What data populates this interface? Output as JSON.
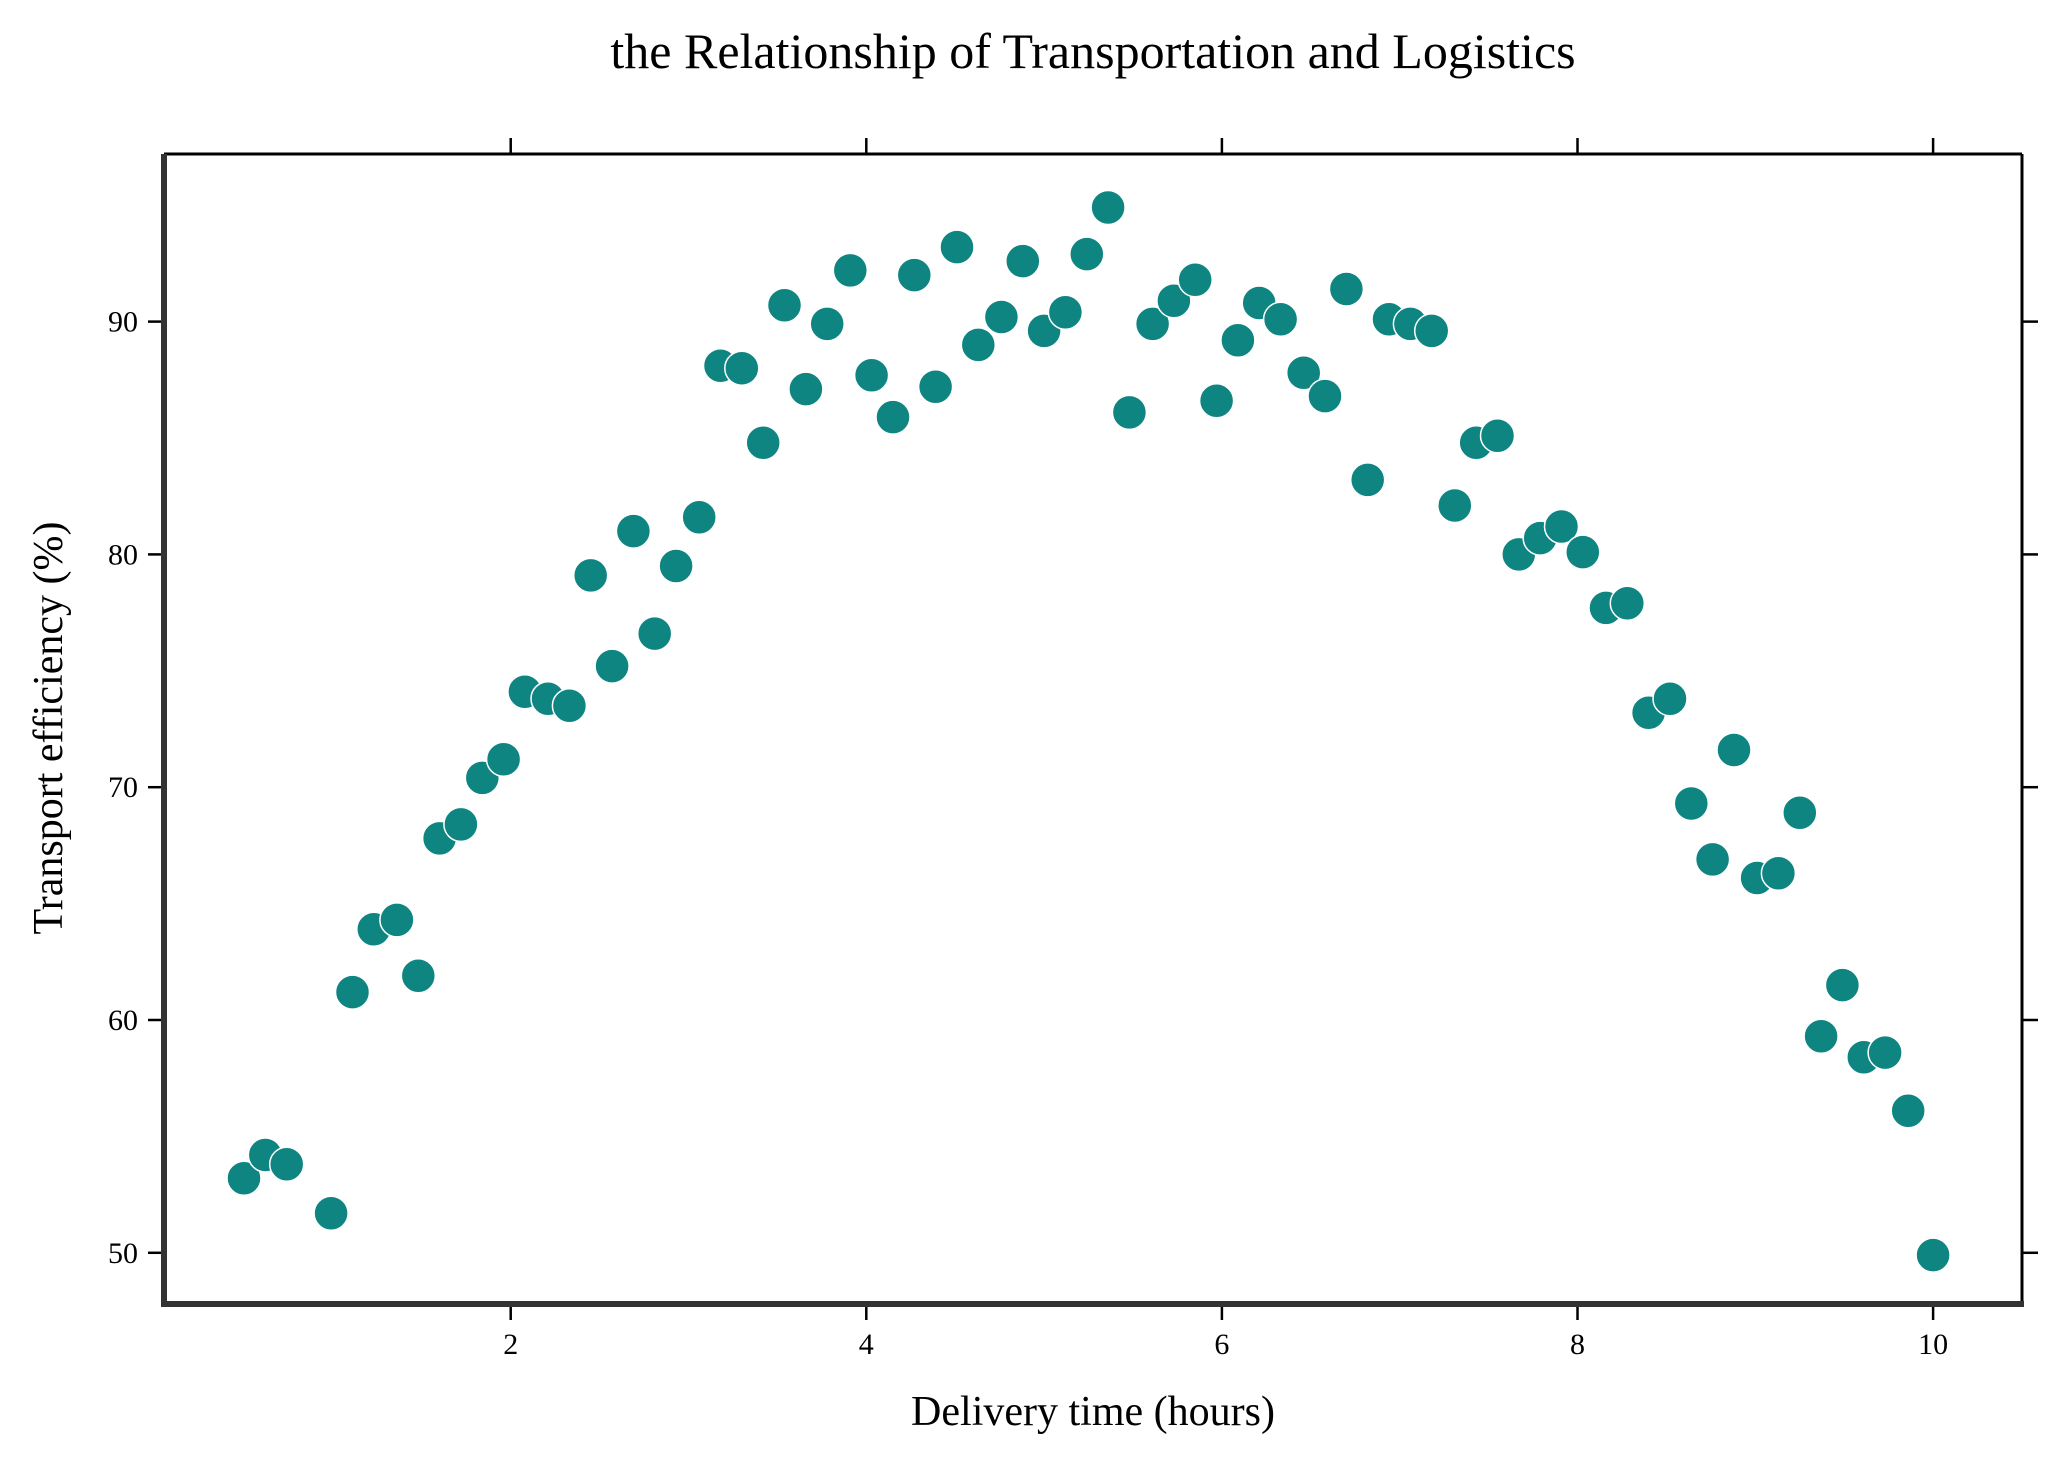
{
  "chart_data": {
    "type": "scatter",
    "title": "the Relationship of Transportation and Logistics",
    "xlabel": "Delivery time (hours)",
    "ylabel": "Transport efficiency (%)",
    "xlim": [
      0.05,
      10.5
    ],
    "ylim": [
      47.8,
      97.2
    ],
    "xticks": [
      2,
      4,
      6,
      8,
      10
    ],
    "yticks": [
      50,
      60,
      70,
      80,
      90
    ],
    "grid": false,
    "marker_color": "#0f8582",
    "marker_edge_color": "#ffffff",
    "x": [
      0.5,
      0.62,
      0.74,
      0.99,
      1.11,
      1.23,
      1.36,
      1.48,
      1.6,
      1.72,
      1.84,
      1.96,
      2.08,
      2.21,
      2.33,
      2.45,
      2.57,
      2.69,
      2.81,
      2.93,
      3.06,
      3.18,
      3.3,
      3.42,
      3.54,
      3.66,
      3.78,
      3.91,
      4.03,
      4.15,
      4.27,
      4.39,
      4.51,
      4.63,
      4.76,
      4.88,
      5.0,
      5.12,
      5.24,
      5.36,
      5.48,
      5.61,
      5.73,
      5.85,
      5.97,
      6.09,
      6.21,
      6.33,
      6.46,
      6.58,
      6.7,
      6.82,
      6.94,
      7.06,
      7.18,
      7.31,
      7.43,
      7.55,
      7.67,
      7.79,
      7.91,
      8.03,
      8.16,
      8.28,
      8.4,
      8.52,
      8.64,
      8.76,
      8.88,
      9.01,
      9.13,
      9.25,
      9.37,
      9.49,
      9.61,
      9.73,
      9.86,
      10.0
    ],
    "y": [
      53.2,
      54.2,
      53.8,
      51.7,
      61.2,
      63.9,
      64.3,
      61.9,
      67.8,
      68.4,
      70.4,
      71.2,
      74.1,
      73.8,
      73.5,
      79.1,
      75.2,
      81.0,
      76.6,
      79.5,
      81.6,
      88.1,
      88.0,
      84.8,
      90.7,
      87.1,
      89.9,
      92.2,
      87.7,
      85.9,
      92.0,
      87.2,
      93.2,
      89.0,
      90.2,
      92.6,
      89.6,
      90.4,
      92.9,
      94.9,
      86.1,
      89.9,
      90.9,
      91.8,
      86.6,
      89.2,
      90.8,
      90.1,
      87.8,
      86.8,
      91.4,
      83.2,
      90.1,
      89.9,
      89.6,
      82.1,
      84.8,
      85.1,
      80.0,
      80.7,
      81.2,
      80.1,
      77.7,
      77.9,
      73.2,
      73.8,
      69.3,
      66.9,
      71.6,
      66.1,
      66.3,
      68.9,
      59.3,
      61.5,
      58.4,
      58.6,
      56.1,
      49.9
    ]
  }
}
